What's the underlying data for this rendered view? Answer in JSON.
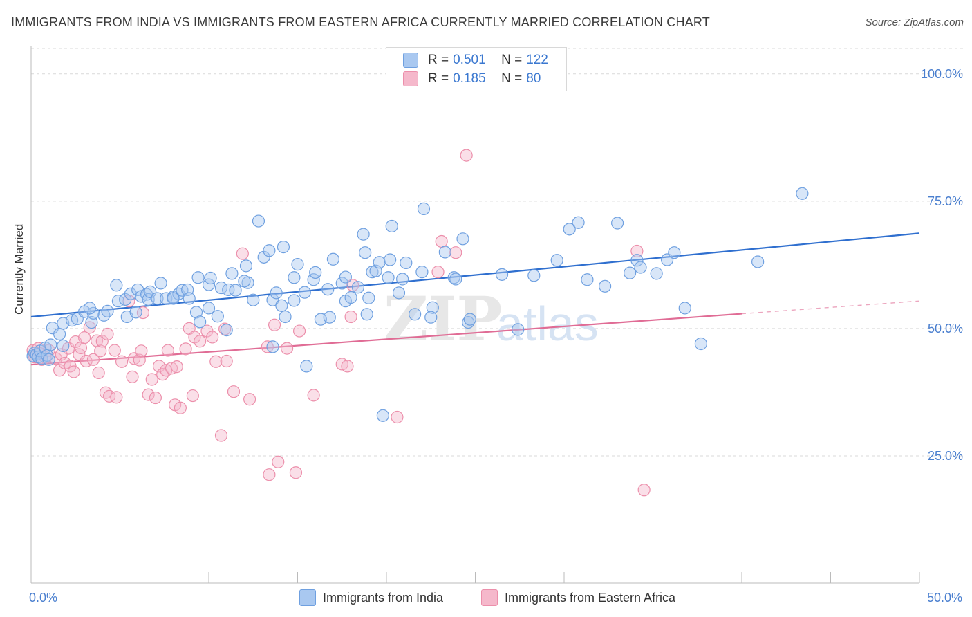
{
  "header": {
    "title": "IMMIGRANTS FROM INDIA VS IMMIGRANTS FROM EASTERN AFRICA CURRENTLY MARRIED CORRELATION CHART",
    "source": "Source: ZipAtlas.com"
  },
  "legend": {
    "rows": [
      {
        "r_label": "R =",
        "r_value": "0.501",
        "n_label": "N =",
        "n_value": "122"
      },
      {
        "r_label": "R =",
        "r_value": "0.185",
        "n_label": "N =",
        "n_value": "80"
      }
    ],
    "bottom": [
      {
        "label": "Immigrants from India"
      },
      {
        "label": "Immigrants from Eastern Africa"
      }
    ]
  },
  "colors": {
    "india_fill": "#a9c8f0",
    "india_stroke": "#6fa0e0",
    "india_line": "#2f6fcf",
    "africa_fill": "#f5b8cb",
    "africa_stroke": "#ec8fab",
    "africa_line": "#e06c95",
    "tick_label": "#4a7fcf",
    "grid": "#d9d9d9"
  },
  "chart_data": {
    "type": "scatter",
    "title": "IMMIGRANTS FROM INDIA VS IMMIGRANTS FROM EASTERN AFRICA CURRENTLY MARRIED CORRELATION CHART",
    "xlabel": "",
    "ylabel": "Currently Married",
    "xlim": [
      0,
      50
    ],
    "ylim": [
      0,
      105
    ],
    "x_tick_labels": [
      "0.0%",
      "50.0%"
    ],
    "y_ticks": [
      25,
      50,
      75,
      100
    ],
    "y_tick_labels": [
      "25.0%",
      "50.0%",
      "75.0%",
      "100.0%"
    ],
    "grid": true,
    "watermark": "ZIPatlas",
    "series": [
      {
        "name": "Immigrants from India",
        "trend": [
          [
            0,
            52.3
          ],
          [
            50,
            68.7
          ]
        ],
        "points": [
          [
            0.1,
            44.6
          ],
          [
            0.2,
            45.2
          ],
          [
            0.3,
            44.9
          ],
          [
            0.4,
            44.4
          ],
          [
            0.5,
            45.6
          ],
          [
            0.6,
            44.1
          ],
          [
            0.8,
            46.2
          ],
          [
            0.9,
            44.7
          ],
          [
            1.0,
            43.9
          ],
          [
            1.1,
            46.8
          ],
          [
            1.2,
            50.1
          ],
          [
            1.6,
            48.9
          ],
          [
            1.8,
            51.0
          ],
          [
            1.8,
            46.6
          ],
          [
            2.3,
            51.6
          ],
          [
            2.6,
            51.9
          ],
          [
            3.0,
            53.3
          ],
          [
            3.4,
            51.2
          ],
          [
            3.5,
            53.0
          ],
          [
            3.3,
            54.0
          ],
          [
            4.1,
            52.6
          ],
          [
            4.3,
            53.4
          ],
          [
            4.8,
            58.5
          ],
          [
            4.9,
            55.4
          ],
          [
            5.3,
            55.7
          ],
          [
            5.4,
            52.3
          ],
          [
            5.6,
            56.8
          ],
          [
            5.9,
            53.2
          ],
          [
            6.0,
            57.6
          ],
          [
            6.2,
            56.3
          ],
          [
            6.5,
            56.7
          ],
          [
            6.6,
            55.7
          ],
          [
            6.7,
            57.2
          ],
          [
            7.1,
            55.9
          ],
          [
            7.3,
            58.9
          ],
          [
            7.6,
            55.9
          ],
          [
            8.0,
            56.2
          ],
          [
            8.3,
            56.8
          ],
          [
            8.5,
            57.5
          ],
          [
            8.0,
            55.9
          ],
          [
            8.8,
            57.6
          ],
          [
            8.9,
            55.9
          ],
          [
            9.4,
            60.0
          ],
          [
            9.3,
            53.2
          ],
          [
            9.5,
            51.3
          ],
          [
            10.0,
            58.6
          ],
          [
            10.1,
            59.9
          ],
          [
            10.0,
            54.0
          ],
          [
            10.5,
            52.4
          ],
          [
            10.7,
            58.0
          ],
          [
            11.1,
            57.6
          ],
          [
            11.3,
            60.8
          ],
          [
            11.5,
            57.5
          ],
          [
            11.0,
            49.7
          ],
          [
            12.1,
            62.3
          ],
          [
            12.2,
            59.0
          ],
          [
            12.0,
            59.3
          ],
          [
            12.5,
            55.6
          ],
          [
            12.8,
            71.1
          ],
          [
            13.1,
            64.0
          ],
          [
            13.4,
            65.3
          ],
          [
            13.6,
            55.6
          ],
          [
            13.8,
            57.0
          ],
          [
            13.6,
            46.4
          ],
          [
            14.1,
            54.5
          ],
          [
            14.2,
            66.0
          ],
          [
            14.3,
            52.3
          ],
          [
            14.8,
            60.0
          ],
          [
            14.8,
            55.5
          ],
          [
            15.0,
            62.6
          ],
          [
            15.4,
            57.1
          ],
          [
            15.5,
            42.6
          ],
          [
            15.9,
            59.6
          ],
          [
            16.0,
            61.0
          ],
          [
            16.3,
            51.8
          ],
          [
            16.7,
            57.7
          ],
          [
            16.8,
            52.2
          ],
          [
            17.0,
            63.6
          ],
          [
            17.5,
            58.9
          ],
          [
            17.7,
            60.1
          ],
          [
            17.7,
            55.4
          ],
          [
            18.0,
            56.1
          ],
          [
            18.4,
            58.1
          ],
          [
            18.7,
            68.5
          ],
          [
            18.8,
            64.9
          ],
          [
            19.0,
            56.0
          ],
          [
            19.2,
            61.1
          ],
          [
            19.4,
            61.3
          ],
          [
            18.9,
            52.8
          ],
          [
            19.6,
            63.0
          ],
          [
            19.8,
            32.9
          ],
          [
            20.2,
            63.5
          ],
          [
            20.3,
            70.1
          ],
          [
            20.1,
            60.0
          ],
          [
            20.9,
            59.7
          ],
          [
            21.1,
            62.9
          ],
          [
            20.7,
            57.0
          ],
          [
            21.6,
            52.8
          ],
          [
            22.0,
            61.1
          ],
          [
            22.1,
            73.5
          ],
          [
            22.6,
            54.1
          ],
          [
            22.5,
            52.2
          ],
          [
            23.3,
            65.0
          ],
          [
            23.8,
            60.0
          ],
          [
            23.9,
            59.7
          ],
          [
            24.3,
            67.6
          ],
          [
            24.6,
            51.2
          ],
          [
            24.7,
            51.8
          ],
          [
            26.5,
            60.6
          ],
          [
            27.4,
            49.8
          ],
          [
            28.3,
            60.4
          ],
          [
            29.6,
            63.4
          ],
          [
            30.3,
            69.5
          ],
          [
            30.8,
            70.8
          ],
          [
            31.3,
            59.6
          ],
          [
            32.3,
            58.3
          ],
          [
            33.0,
            70.7
          ],
          [
            33.7,
            60.9
          ],
          [
            34.1,
            63.4
          ],
          [
            34.3,
            62.0
          ],
          [
            35.2,
            60.8
          ],
          [
            35.8,
            63.5
          ],
          [
            36.2,
            64.9
          ],
          [
            36.8,
            54.0
          ],
          [
            37.7,
            47.0
          ],
          [
            40.9,
            63.1
          ],
          [
            43.4,
            76.5
          ]
        ]
      },
      {
        "name": "Immigrants from Eastern Africa",
        "trend": [
          [
            0,
            42.9
          ],
          [
            40,
            52.9
          ]
        ],
        "trend_dashed": [
          [
            40,
            52.9
          ],
          [
            50,
            55.4
          ]
        ],
        "points": [
          [
            0.1,
            45.7
          ],
          [
            0.2,
            44.4
          ],
          [
            0.4,
            46.1
          ],
          [
            0.5,
            45.1
          ],
          [
            0.6,
            43.9
          ],
          [
            0.8,
            44.3
          ],
          [
            1.0,
            45.7
          ],
          [
            1.4,
            44.1
          ],
          [
            1.6,
            41.8
          ],
          [
            1.7,
            44.9
          ],
          [
            1.9,
            43.2
          ],
          [
            2.1,
            46.1
          ],
          [
            2.2,
            42.6
          ],
          [
            2.4,
            41.5
          ],
          [
            2.5,
            47.4
          ],
          [
            2.7,
            44.9
          ],
          [
            2.8,
            46.2
          ],
          [
            3.0,
            48.2
          ],
          [
            3.1,
            43.6
          ],
          [
            3.3,
            50.2
          ],
          [
            3.5,
            43.9
          ],
          [
            3.7,
            47.6
          ],
          [
            3.8,
            41.3
          ],
          [
            3.9,
            45.6
          ],
          [
            4.0,
            47.5
          ],
          [
            4.2,
            37.4
          ],
          [
            4.3,
            48.9
          ],
          [
            4.4,
            36.7
          ],
          [
            4.7,
            45.7
          ],
          [
            4.8,
            36.5
          ],
          [
            5.1,
            43.5
          ],
          [
            5.5,
            55.4
          ],
          [
            5.7,
            40.5
          ],
          [
            5.8,
            44.1
          ],
          [
            6.1,
            43.8
          ],
          [
            6.2,
            45.6
          ],
          [
            6.3,
            53.1
          ],
          [
            6.6,
            37.0
          ],
          [
            6.8,
            40.0
          ],
          [
            7.0,
            36.4
          ],
          [
            7.2,
            42.6
          ],
          [
            7.4,
            41.0
          ],
          [
            7.6,
            41.8
          ],
          [
            7.7,
            45.7
          ],
          [
            7.9,
            42.2
          ],
          [
            8.1,
            35.0
          ],
          [
            8.2,
            42.5
          ],
          [
            8.4,
            34.4
          ],
          [
            8.7,
            46.0
          ],
          [
            8.9,
            50.0
          ],
          [
            9.1,
            36.8
          ],
          [
            9.2,
            48.3
          ],
          [
            9.5,
            47.5
          ],
          [
            9.9,
            49.5
          ],
          [
            10.2,
            48.3
          ],
          [
            10.4,
            43.5
          ],
          [
            10.7,
            29.0
          ],
          [
            10.9,
            49.9
          ],
          [
            11.0,
            43.6
          ],
          [
            11.4,
            37.6
          ],
          [
            11.9,
            64.7
          ],
          [
            12.3,
            36.1
          ],
          [
            13.3,
            46.4
          ],
          [
            13.4,
            21.3
          ],
          [
            13.7,
            50.7
          ],
          [
            13.9,
            23.8
          ],
          [
            14.4,
            46.1
          ],
          [
            14.9,
            21.7
          ],
          [
            15.1,
            49.5
          ],
          [
            15.9,
            36.9
          ],
          [
            17.5,
            43.0
          ],
          [
            17.8,
            42.6
          ],
          [
            18.0,
            52.3
          ],
          [
            18.1,
            58.5
          ],
          [
            20.6,
            32.6
          ],
          [
            22.9,
            61.1
          ],
          [
            23.1,
            67.1
          ],
          [
            23.9,
            64.9
          ],
          [
            24.5,
            84.0
          ],
          [
            34.1,
            65.2
          ],
          [
            34.5,
            18.3
          ]
        ]
      }
    ]
  }
}
